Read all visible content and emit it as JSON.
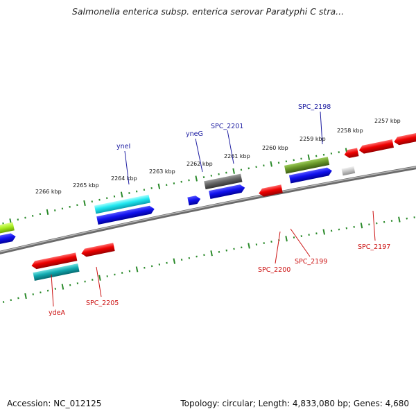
{
  "title": "Salmonella enterica subsp. enterica serovar Paratyphi C stra...",
  "footer": {
    "accession": "Accession: NC_012125",
    "summary": "Topology: circular; Length: 4,833,080 bp; Genes: 4,680"
  },
  "colors": {
    "forward_label": "#1a1aa0",
    "reverse_label": "#cc1111",
    "backbone": "#888888",
    "tick": "#2a8a2a"
  },
  "kbp_ticks": [
    "2257 kbp",
    "2258 kbp",
    "2259 kbp",
    "2260 kbp",
    "2261 kbp",
    "2262 kbp",
    "2263 kbp",
    "2264 kbp",
    "2265 kbp",
    "2266 kbp"
  ],
  "forward_labels": [
    "SPC_2198",
    "SPC_2201",
    "yneG",
    "yneI"
  ],
  "reverse_labels": [
    "SPC_2197",
    "SPC_2199",
    "SPC_2200",
    "SPC_2205",
    "ydeA"
  ],
  "gene_icons": [
    "forward-gene-arrow-icon",
    "reverse-gene-arrow-icon",
    "gene-block-icon"
  ]
}
